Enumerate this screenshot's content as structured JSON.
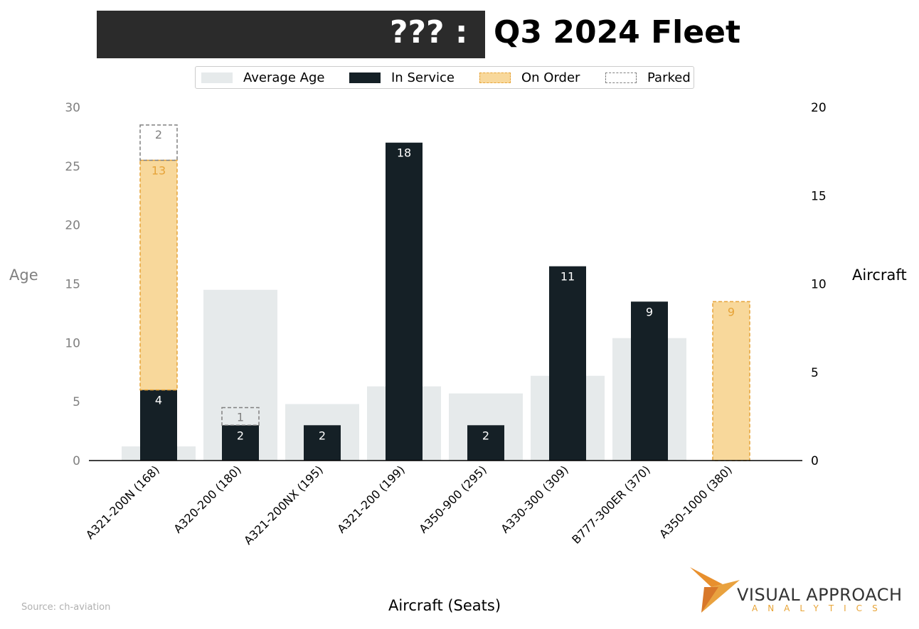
{
  "title": {
    "redacted": "???  :",
    "text": "Q3 2024 Fleet"
  },
  "legend": {
    "average_age": "Average Age",
    "in_service": "In Service",
    "on_order": "On Order",
    "parked": "Parked",
    "placement": "top-center"
  },
  "source": "Source: ch-aviation",
  "logo": {
    "main": "VISUAL APPROACH",
    "sub": "ANALYTICS"
  },
  "colors": {
    "average_age": "#e6eaeb",
    "in_service": "#152026",
    "on_order_fill": "#f8d89b",
    "on_order_edge": "#e6a338",
    "parked_edge": "#808080",
    "title_bar": "#2b2b2b"
  },
  "chart_data": {
    "type": "bar",
    "title": "???  : Q3 2024 Fleet",
    "xlabel": "Aircraft (Seats)",
    "ylabel_left": "Age",
    "ylabel_right": "Aircraft",
    "ylim_left": [
      0,
      30
    ],
    "yticks_left": [
      0,
      5,
      10,
      15,
      20,
      25,
      30
    ],
    "ylim_right": [
      0,
      20
    ],
    "yticks_right": [
      0,
      5,
      10,
      15,
      20
    ],
    "grid": false,
    "categories": [
      "A321-200N (168)",
      "A320-200 (180)",
      "A321-200NX (195)",
      "A321-200 (199)",
      "A350-900 (295)",
      "A330-300 (309)",
      "B777-300ER (370)",
      "A350-1000 (380)"
    ],
    "series": [
      {
        "name": "Average Age",
        "axis": "left",
        "values": [
          1.2,
          14.5,
          4.8,
          6.3,
          5.7,
          7.2,
          10.4,
          0
        ]
      },
      {
        "name": "In Service",
        "axis": "right",
        "stacked": true,
        "values": [
          4,
          2,
          2,
          18,
          2,
          11,
          9,
          0
        ]
      },
      {
        "name": "On Order",
        "axis": "right",
        "stacked": true,
        "values": [
          13,
          0,
          0,
          0,
          0,
          0,
          0,
          9
        ]
      },
      {
        "name": "Parked",
        "axis": "right",
        "stacked": true,
        "values": [
          2,
          1,
          0,
          0,
          0,
          0,
          0,
          0
        ]
      }
    ]
  }
}
